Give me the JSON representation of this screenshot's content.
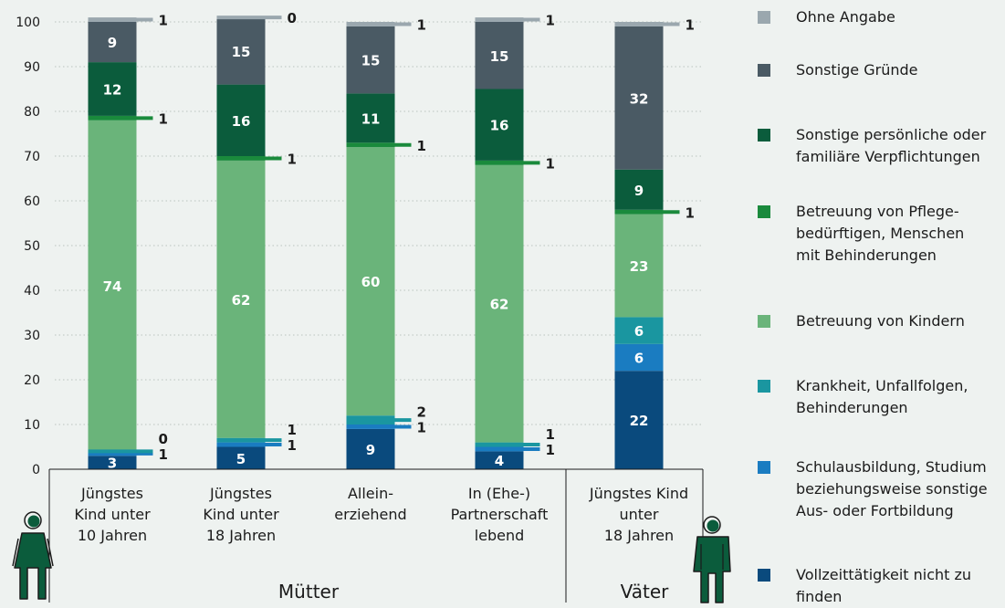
{
  "chart_data": {
    "type": "bar",
    "stacked": true,
    "title": "",
    "xlabel": "",
    "ylabel": "",
    "ylim": [
      0,
      100
    ],
    "yticks": [
      0,
      10,
      20,
      30,
      40,
      50,
      60,
      70,
      80,
      90,
      100
    ],
    "grid": true,
    "legend_position": "right",
    "groups": [
      {
        "label": "Mütter",
        "categories": [
          0,
          1,
          2,
          3
        ]
      },
      {
        "label": "Väter",
        "categories": [
          4
        ]
      }
    ],
    "categories": [
      "Jüngstes\nKind unter\n10 Jahren",
      "Jüngstes\nKind unter\n18 Jahren",
      "Allein-\nerziehend",
      "In (Ehe-)\nPartnerschaft\nlebend",
      "Jüngstes Kind\nunter\n18 Jahren"
    ],
    "series": [
      {
        "name": "Vollzeittätigkeit nicht zu finden",
        "color": "#0a4a7d",
        "values": [
          3,
          5,
          9,
          4,
          22
        ]
      },
      {
        "name": "Schulausbildung, Studium beziehungsweise sonstige Aus- oder Fortbildung",
        "color": "#1a7cc1",
        "values": [
          1,
          1,
          1,
          1,
          6
        ]
      },
      {
        "name": "Krankheit, Unfallfolgen, Behinderungen",
        "color": "#1a96a0",
        "values": [
          0,
          1,
          2,
          1,
          6
        ]
      },
      {
        "name": "Betreuung von Kindern",
        "color": "#6ab47a",
        "values": [
          74,
          62,
          60,
          62,
          23
        ]
      },
      {
        "name": "Betreuung von Pflege-bedürftigen, Menschen mit Behinderungen",
        "color": "#1a8a3c",
        "values": [
          1,
          1,
          1,
          1,
          1
        ]
      },
      {
        "name": "Sonstige persönliche oder familiäre Verpflichtungen",
        "color": "#0b5c3c",
        "values": [
          12,
          16,
          11,
          16,
          9
        ]
      },
      {
        "name": "Sonstige Gründe",
        "color": "#4a5a64",
        "values": [
          9,
          15,
          15,
          15,
          32
        ]
      },
      {
        "name": "Ohne Angabe",
        "color": "#9aa7ae",
        "values": [
          1,
          0,
          1,
          1,
          1
        ]
      }
    ]
  },
  "legend": {
    "items": [
      {
        "text": "Ohne Angabe",
        "color": "#9aa7ae",
        "icon": "legend-swatch"
      },
      {
        "text": "Sonstige Gründe",
        "color": "#4a5a64",
        "icon": "legend-swatch"
      },
      {
        "text": "Sonstige persönliche oder\nfamiliäre Verpflichtungen",
        "color": "#0b5c3c",
        "icon": "legend-swatch"
      },
      {
        "text": "Betreuung von Pflege-\nbedürftigen, Menschen\nmit Behinderungen",
        "color": "#1a8a3c",
        "icon": "legend-swatch"
      },
      {
        "text": "Betreuung von Kindern",
        "color": "#6ab47a",
        "icon": "legend-swatch"
      },
      {
        "text": "Krankheit, Unfallfolgen,\nBehinderungen",
        "color": "#1a96a0",
        "icon": "legend-swatch"
      },
      {
        "text": "Schulausbildung, Studium\nbeziehungsweise sonstige\nAus- oder Fortbildung",
        "color": "#1a7cc1",
        "icon": "legend-swatch"
      },
      {
        "text": "Vollzeittätigkeit nicht zu\nfinden",
        "color": "#0a4a7d",
        "icon": "legend-swatch"
      }
    ]
  },
  "icons": {
    "mothers": "woman-figure-icon",
    "fathers": "man-figure-icon",
    "color": "#0b5c3c"
  }
}
